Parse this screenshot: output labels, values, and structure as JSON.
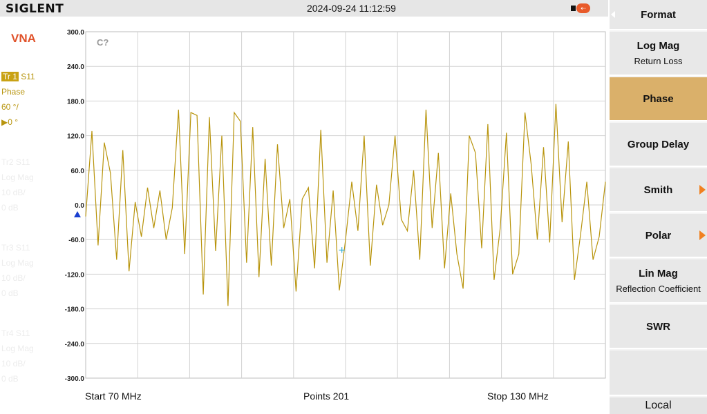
{
  "header": {
    "brand": "SIGLENT",
    "datetime": "2024-09-24 11:12:59"
  },
  "left_panel": {
    "mode": "VNA",
    "traces": [
      {
        "tag": "Tr 1",
        "param": "S11",
        "format": "Phase",
        "scale": "60 °/",
        "ref": "▶0 °",
        "active": true
      },
      {
        "tag": "Tr2",
        "param": "S11",
        "format": "Log Mag",
        "scale": "10 dB/",
        "ref": "0 dB",
        "active": false
      },
      {
        "tag": "Tr3",
        "param": "S11",
        "format": "Log Mag",
        "scale": "10 dB/",
        "ref": "0 dB",
        "active": false
      },
      {
        "tag": "Tr4",
        "param": "S11",
        "format": "Log Mag",
        "scale": "10 dB/",
        "ref": "0 dB",
        "active": false
      }
    ]
  },
  "plot": {
    "channel_label": "C?",
    "ref_label": "0.0"
  },
  "footer": {
    "start": "Start  70 MHz",
    "points": "Points  201",
    "stop": "Stop  130 MHz"
  },
  "softkeys": {
    "title": "Format",
    "items": [
      {
        "label": "Log Mag",
        "sub": "Return Loss",
        "active": false,
        "submenu": false
      },
      {
        "label": "Phase",
        "sub": "",
        "active": true,
        "submenu": false
      },
      {
        "label": "Group Delay",
        "sub": "",
        "active": false,
        "submenu": false
      },
      {
        "label": "Smith",
        "sub": "",
        "active": false,
        "submenu": true
      },
      {
        "label": "Polar",
        "sub": "",
        "active": false,
        "submenu": true
      },
      {
        "label": "Lin Mag",
        "sub": "Reflection Coefficient",
        "active": false,
        "submenu": false
      },
      {
        "label": "SWR",
        "sub": "",
        "active": false,
        "submenu": false
      },
      {
        "label": "",
        "sub": "",
        "active": false,
        "submenu": false
      }
    ],
    "local": "Local"
  },
  "colors": {
    "trace": "#b8940c",
    "grid": "#d2d2d2",
    "marker": "#22a8d0",
    "ref_arrow": "#1a3fd0"
  },
  "chart_data": {
    "type": "line",
    "title": "",
    "xlabel": "",
    "ylabel": "",
    "x_range_mhz": [
      70,
      130
    ],
    "ylim": [
      -300,
      300
    ],
    "yticks": [
      "300.0",
      "240.0",
      "180.0",
      "120.0",
      "60.0",
      "0.0",
      "-60.0",
      "-120.0",
      "-180.0",
      "-240.0",
      "-300.0"
    ],
    "grid": true,
    "series": [
      {
        "values": [
          -20,
          128,
          -70,
          108,
          55,
          -95,
          95,
          -115,
          5,
          -55,
          30,
          -40,
          25,
          -60,
          -5,
          165,
          -85,
          160,
          155,
          -155,
          152,
          -80,
          120,
          -175,
          160,
          145,
          -100,
          135,
          -125,
          80,
          -105,
          105,
          -40,
          10,
          -150,
          10,
          30,
          -110,
          130,
          -100,
          25,
          -148,
          -60,
          40,
          -45,
          120,
          -105,
          35,
          -35,
          0,
          120,
          -25,
          -45,
          60,
          -95,
          165,
          -40,
          90,
          -110,
          20,
          -85,
          -145,
          120,
          90,
          -75,
          140,
          -130,
          -40,
          125,
          -120,
          -85,
          160,
          70,
          -60,
          100,
          -65,
          175,
          -30,
          110,
          -130,
          -50,
          40,
          -95,
          -55,
          40
        ]
      }
    ],
    "marker_label": "+"
  }
}
